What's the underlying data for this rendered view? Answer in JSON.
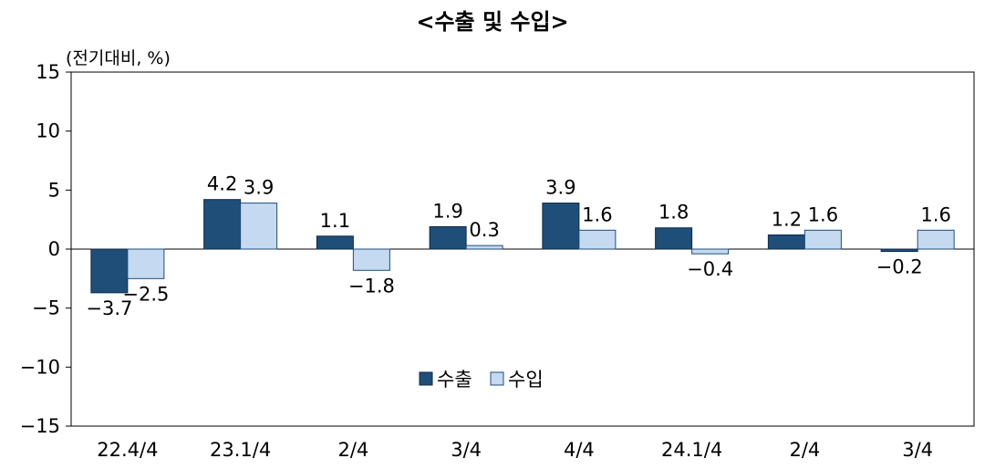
{
  "chart_data": {
    "type": "bar",
    "title": "<수출 및 수입>",
    "unit_label": "(전기대비, %)",
    "categories": [
      "22.4/4",
      "23.1/4",
      "2/4",
      "3/4",
      "4/4",
      "24.1/4",
      "2/4",
      "3/4"
    ],
    "series": [
      {
        "name": "수출",
        "color": "#1f4e79",
        "values": [
          -3.7,
          4.2,
          1.1,
          1.9,
          3.9,
          1.8,
          1.2,
          -0.2
        ],
        "labels": [
          "−3.7",
          "4.2",
          "1.1",
          "1.9",
          "3.9",
          "1.8",
          "1.2",
          "−0.2"
        ]
      },
      {
        "name": "수입",
        "color": "#c5d9f1",
        "values": [
          -2.5,
          3.9,
          -1.8,
          0.3,
          1.6,
          -0.4,
          1.6,
          1.6
        ],
        "labels": [
          "−2.5",
          "3.9",
          "−1.8",
          "0.3",
          "1.6",
          "−0.4",
          "1.6",
          "1.6"
        ]
      }
    ],
    "ylim": [
      -15,
      15
    ],
    "yticks": [
      15,
      10,
      5,
      0,
      -5,
      -10,
      -15
    ],
    "ytick_labels": [
      "15",
      "10",
      "5",
      "0",
      "−5",
      "−10",
      "−15"
    ],
    "grid": false,
    "legend": "inside-lower-center"
  }
}
